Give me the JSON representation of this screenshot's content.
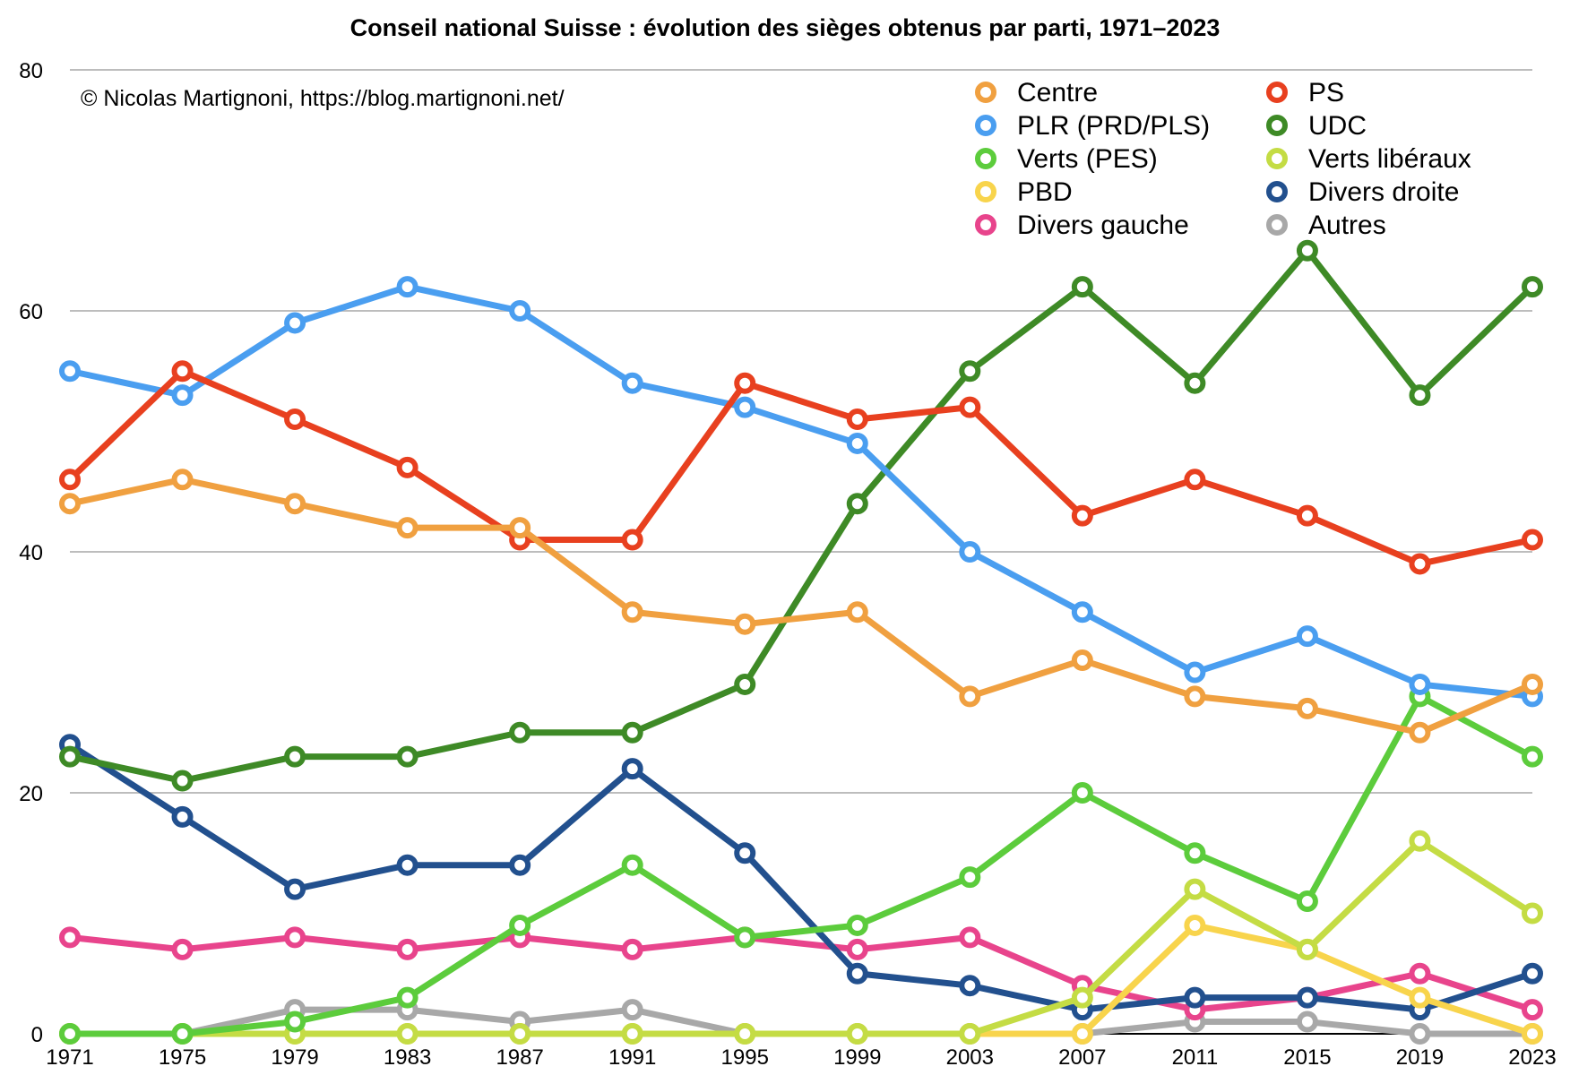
{
  "chart_data": {
    "type": "line",
    "title": "Conseil national Suisse : évolution des sièges obtenus par parti, 1971–2023",
    "subtitle": "© Nicolas Martignoni, https://blog.martignoni.net/",
    "xlabel": "",
    "ylabel": "",
    "x": [
      1971,
      1975,
      1979,
      1983,
      1987,
      1991,
      1995,
      1999,
      2003,
      2007,
      2011,
      2015,
      2019,
      2023
    ],
    "ylim": [
      0,
      80
    ],
    "yticks": [
      0,
      20,
      40,
      60,
      80
    ],
    "grid": true,
    "legend_position": "top-right",
    "series": [
      {
        "name": "Centre",
        "color": "#f0a040",
        "values": [
          44,
          46,
          44,
          42,
          42,
          35,
          34,
          35,
          28,
          31,
          28,
          27,
          25,
          29
        ]
      },
      {
        "name": "PS",
        "color": "#e8401f",
        "values": [
          46,
          55,
          51,
          47,
          41,
          41,
          54,
          51,
          52,
          43,
          46,
          43,
          39,
          41
        ]
      },
      {
        "name": "PLR (PRD/PLS)",
        "color": "#4a9ef0",
        "values": [
          55,
          53,
          59,
          62,
          60,
          54,
          52,
          49,
          40,
          35,
          30,
          33,
          29,
          28
        ]
      },
      {
        "name": "UDC",
        "color": "#3e8a26",
        "values": [
          23,
          21,
          23,
          23,
          25,
          25,
          29,
          44,
          55,
          62,
          54,
          65,
          53,
          62
        ]
      },
      {
        "name": "Verts (PES)",
        "color": "#5ccc3c",
        "values": [
          0,
          0,
          1,
          3,
          9,
          14,
          8,
          9,
          13,
          20,
          15,
          11,
          28,
          23
        ]
      },
      {
        "name": "Verts libéraux",
        "color": "#c4dc44",
        "values": [
          0,
          0,
          0,
          0,
          0,
          0,
          0,
          0,
          0,
          3,
          12,
          7,
          16,
          10
        ]
      },
      {
        "name": "PBD",
        "color": "#f8d44c",
        "values": [
          0,
          0,
          0,
          0,
          0,
          0,
          0,
          0,
          0,
          0,
          9,
          7,
          3,
          0
        ]
      },
      {
        "name": "Divers droite",
        "color": "#22508e",
        "values": [
          24,
          18,
          12,
          14,
          14,
          22,
          15,
          5,
          4,
          2,
          3,
          3,
          2,
          5
        ]
      },
      {
        "name": "Divers gauche",
        "color": "#e8448c",
        "values": [
          8,
          7,
          8,
          7,
          8,
          7,
          8,
          7,
          8,
          4,
          2,
          3,
          5,
          2
        ]
      },
      {
        "name": "Autres",
        "color": "#a8a8a8",
        "values": [
          0,
          0,
          2,
          2,
          1,
          2,
          0,
          0,
          0,
          0,
          1,
          1,
          0,
          0
        ]
      }
    ]
  }
}
